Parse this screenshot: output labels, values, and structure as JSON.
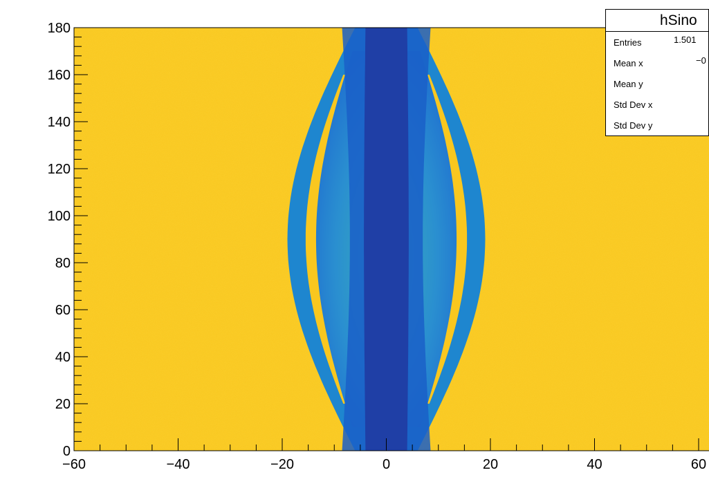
{
  "chart_data": {
    "type": "heatmap",
    "title": "",
    "xlabel": "",
    "ylabel": "",
    "xlim": [
      -60,
      60
    ],
    "ylim": [
      0,
      180
    ],
    "x_ticks": [
      "−60",
      "−40",
      "−20",
      "0",
      "20",
      "40",
      "60"
    ],
    "y_ticks": [
      "0",
      "20",
      "40",
      "60",
      "80",
      "100",
      "120",
      "140",
      "160",
      "180"
    ],
    "description_values": {
      "background_level": "high (yellow)",
      "central_band_half_width": 8,
      "inner_lobe_max_half_width": 13,
      "outer_arc_max_half_width": 19
    },
    "colors": {
      "background": "#f9c71f",
      "band_dark": "#1f3fa6",
      "band_mid": "#1a5fc8",
      "lobe": "#2fa0c8",
      "arc": "#1e86cf"
    }
  },
  "stats": {
    "title": "hSino",
    "rows": [
      {
        "key": "Entries",
        "value": "1.501"
      },
      {
        "key": "Mean x",
        "value": "−0"
      },
      {
        "key": "Mean y",
        "value": ""
      },
      {
        "key": "Std Dev x",
        "value": ""
      },
      {
        "key": "Std Dev y",
        "value": ""
      }
    ]
  }
}
